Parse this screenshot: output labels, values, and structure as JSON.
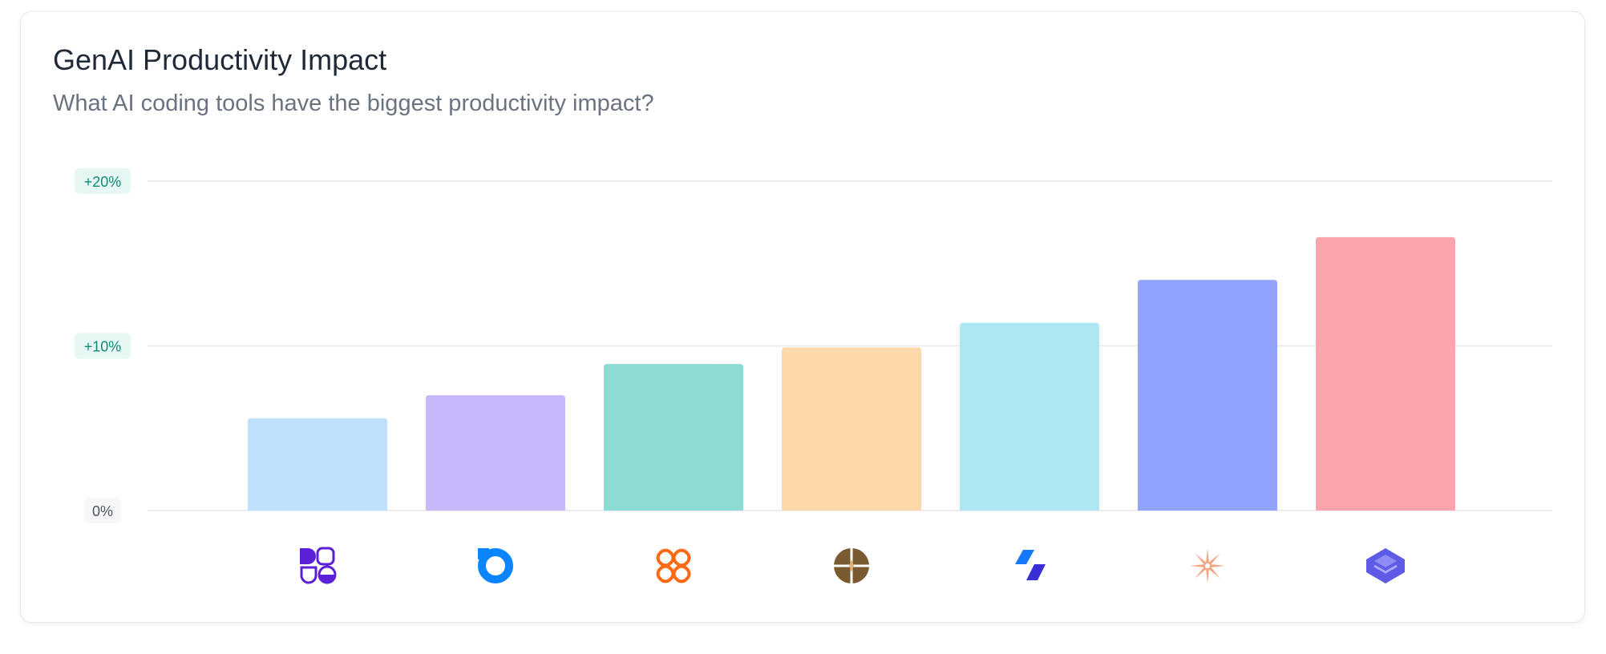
{
  "header": {
    "title": "GenAI Productivity Impact",
    "subtitle": "What AI coding tools have the biggest productivity impact?"
  },
  "chart_data": {
    "type": "bar",
    "title": "GenAI Productivity Impact",
    "subtitle": "What AI coding tools have the biggest productivity impact?",
    "xlabel": "",
    "ylabel": "",
    "ylim": [
      0,
      20
    ],
    "y_ticks": [
      {
        "value": 0,
        "label": "0%"
      },
      {
        "value": 10,
        "label": "+10%"
      },
      {
        "value": 20,
        "label": "+20%"
      }
    ],
    "grid": true,
    "categories_shown_as": "icons",
    "categories": [
      {
        "icon": "purple-blocks-logo-icon",
        "color": "#5b1fd6"
      },
      {
        "icon": "blue-ring-logo-icon",
        "color": "#0a84ff"
      },
      {
        "icon": "orange-knot-logo-icon",
        "color": "#ff6a13"
      },
      {
        "icon": "brown-compass-logo-icon",
        "color": "#7a5a30"
      },
      {
        "icon": "blue-parallelogram-logo-icon",
        "color": "#2f6bff"
      },
      {
        "icon": "salmon-asterisk-logo-icon",
        "color": "#f4a583"
      },
      {
        "icon": "indigo-layers-logo-icon",
        "color": "#5e5ce6"
      }
    ],
    "values": [
      5.6,
      7.0,
      8.9,
      9.9,
      11.4,
      14.0,
      16.6
    ],
    "bar_colors": [
      "#bfe1fd",
      "#c6b8fb",
      "#8ddcd4",
      "#fdd8aa",
      "#ade7f1",
      "#91a3fd",
      "#fda5ae"
    ]
  }
}
